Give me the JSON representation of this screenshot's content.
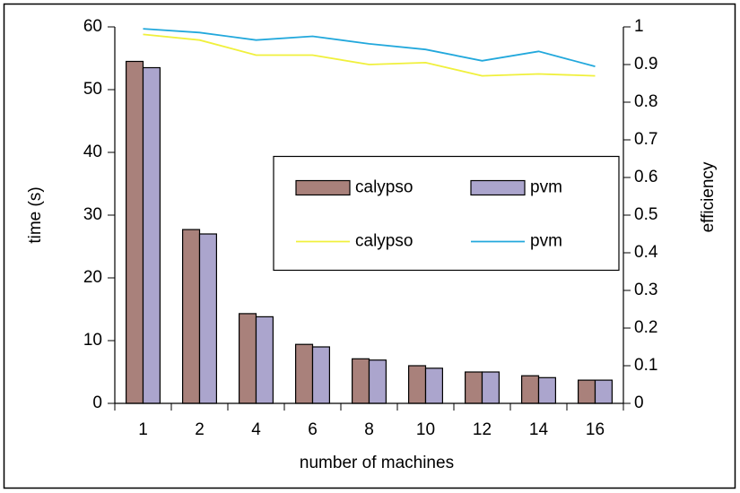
{
  "chart_data": {
    "type": "bar",
    "categories": [
      "1",
      "2",
      "4",
      "6",
      "8",
      "10",
      "12",
      "14",
      "16"
    ],
    "x_label": "number of machines",
    "y_label": "time (s)",
    "y2_label": "efficiency",
    "series": [
      {
        "name": "calypso",
        "type": "bar",
        "axis": "y",
        "color": "#a9817b",
        "values": [
          54.5,
          27.7,
          14.3,
          9.4,
          7.1,
          6.0,
          5.0,
          4.4,
          3.7
        ]
      },
      {
        "name": "pvm",
        "type": "bar",
        "axis": "y",
        "color": "#aba5cd",
        "values": [
          53.5,
          27.0,
          13.8,
          9.0,
          6.9,
          5.6,
          5.0,
          4.1,
          3.7
        ]
      },
      {
        "name": "calypso",
        "type": "line",
        "axis": "y2",
        "color": "#f0f03c",
        "values": [
          0.98,
          0.965,
          0.925,
          0.925,
          0.9,
          0.905,
          0.87,
          0.875,
          0.87
        ]
      },
      {
        "name": "pvm",
        "type": "line",
        "axis": "y2",
        "color": "#22a8dc",
        "values": [
          0.995,
          0.985,
          0.965,
          0.975,
          0.955,
          0.94,
          0.91,
          0.935,
          0.895
        ]
      }
    ],
    "ylim": [
      0,
      60
    ],
    "yticks": [
      0,
      10,
      20,
      30,
      40,
      50,
      60
    ],
    "y2lim": [
      0,
      1
    ],
    "y2ticks": [
      0,
      0.1,
      0.2,
      0.3,
      0.4,
      0.5,
      0.6,
      0.7,
      0.8,
      0.9,
      1
    ],
    "grid": false,
    "legend": "right"
  }
}
